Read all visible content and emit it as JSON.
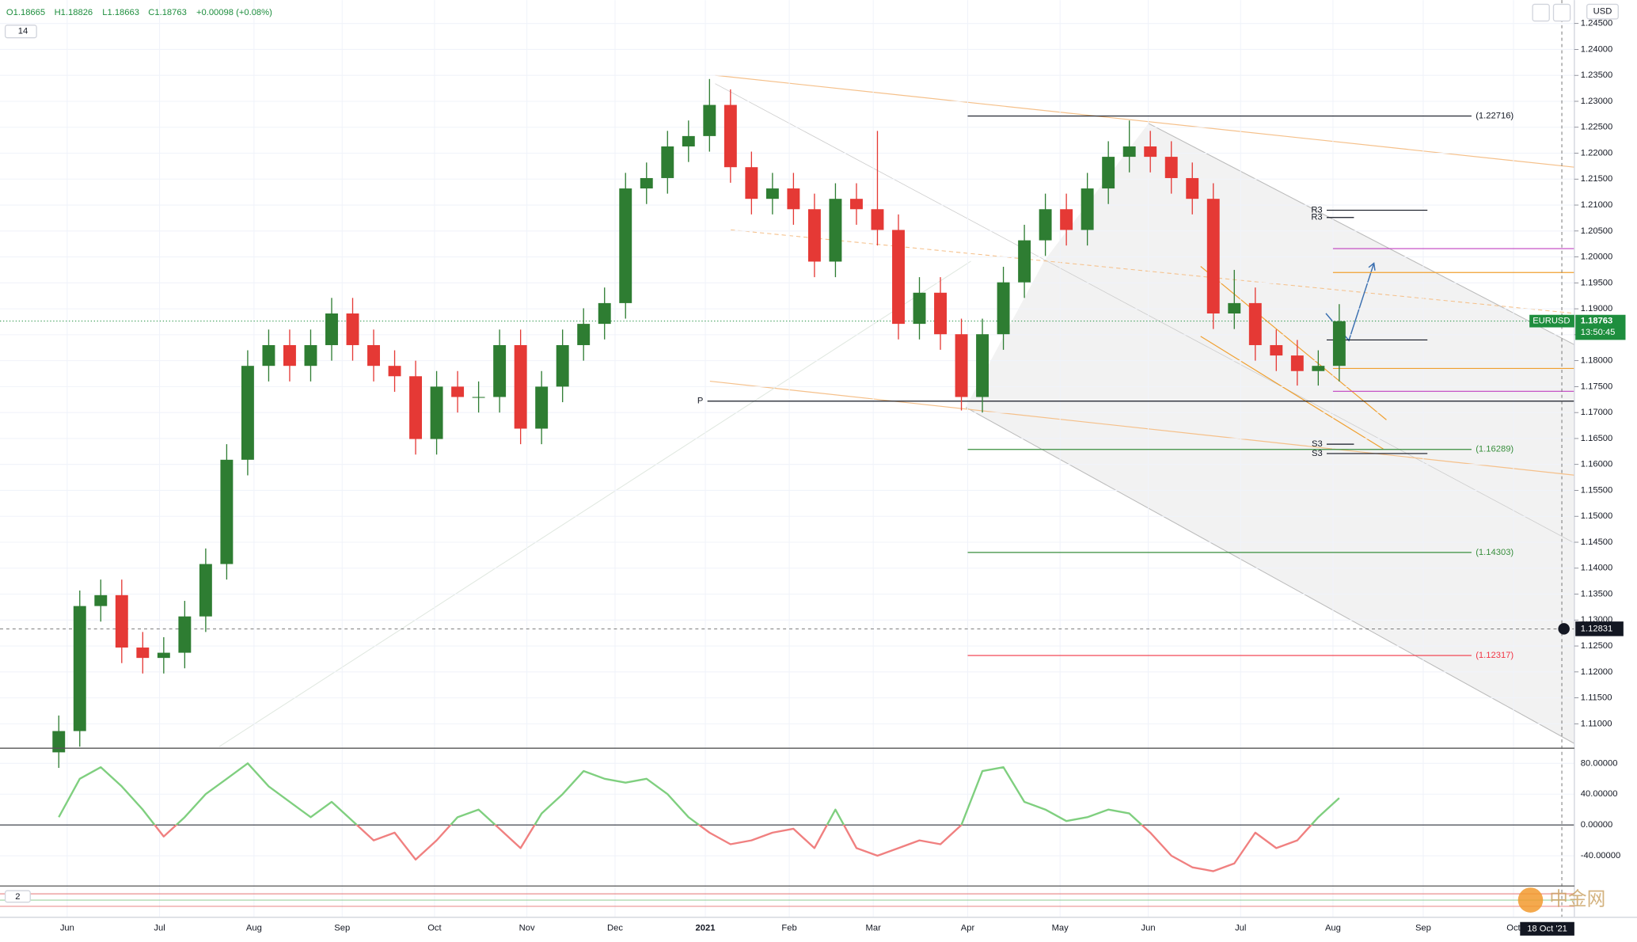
{
  "header": {
    "open": "O1.18665",
    "high": "H1.18826",
    "low": "L1.18663",
    "close": "C1.18763",
    "change": "+0.00098 (+0.08%)",
    "indicator_length": "14",
    "lower_pane_length": "2",
    "currency": "USD",
    "date_tag": "18 Oct '21",
    "watermark": "中金网"
  },
  "chart_data": [
    {
      "type": "candlestick",
      "x": [
        0,
        1,
        2,
        3,
        4,
        5,
        6,
        7,
        8,
        9,
        10,
        11,
        12,
        13,
        14,
        15,
        16,
        17,
        18,
        19,
        20,
        21,
        22,
        23,
        24,
        25,
        26,
        27,
        28,
        29,
        30,
        31,
        32,
        33,
        34,
        35,
        36,
        37,
        38,
        39,
        40,
        41,
        42,
        43,
        44,
        45,
        46,
        47,
        48,
        49,
        50,
        51,
        52,
        53,
        54,
        55,
        56,
        57,
        58,
        59,
        60,
        61
      ],
      "open": [
        1.1045,
        1.1086,
        1.1327,
        1.1348,
        1.1247,
        1.1227,
        1.1237,
        1.1307,
        1.1408,
        1.1609,
        1.179,
        1.183,
        1.179,
        1.183,
        1.1891,
        1.183,
        1.179,
        1.177,
        1.1649,
        1.175,
        1.173,
        1.173,
        1.183,
        1.1669,
        1.175,
        1.183,
        1.1871,
        1.1911,
        1.2132,
        1.2152,
        1.2213,
        1.2233,
        1.2293,
        1.2173,
        1.2112,
        1.2132,
        1.2092,
        1.1991,
        1.2112,
        1.2092,
        1.2052,
        1.1871,
        1.1931,
        1.1851,
        1.173,
        1.1851,
        1.1951,
        1.2032,
        1.2092,
        1.2052,
        1.2132,
        1.2193,
        1.2213,
        1.2193,
        1.2152,
        1.2112,
        1.1891,
        1.1911,
        1.183,
        1.181,
        1.178,
        1.179
      ],
      "high": [
        1.1116,
        1.1357,
        1.1378,
        1.1378,
        1.1277,
        1.1267,
        1.1337,
        1.1438,
        1.1639,
        1.182,
        1.186,
        1.186,
        1.186,
        1.1921,
        1.1921,
        1.186,
        1.182,
        1.18,
        1.178,
        1.178,
        1.176,
        1.186,
        1.186,
        1.178,
        1.186,
        1.1901,
        1.1941,
        1.2162,
        1.2182,
        1.2243,
        1.2263,
        1.2343,
        1.2323,
        1.2203,
        1.2162,
        1.2162,
        1.2122,
        1.2142,
        1.2142,
        1.2243,
        1.2082,
        1.1961,
        1.1961,
        1.1881,
        1.1881,
        1.1981,
        1.2062,
        1.2122,
        1.2122,
        1.2162,
        1.2223,
        1.2263,
        1.2243,
        1.2223,
        1.2182,
        1.2142,
        1.1975,
        1.1941,
        1.186,
        1.184,
        1.182,
        1.1909
      ],
      "low": [
        1.1015,
        1.1056,
        1.1297,
        1.1217,
        1.1197,
        1.1197,
        1.1207,
        1.1277,
        1.1378,
        1.1579,
        1.176,
        1.176,
        1.176,
        1.18,
        1.18,
        1.176,
        1.174,
        1.1619,
        1.1619,
        1.17,
        1.17,
        1.17,
        1.1639,
        1.1639,
        1.172,
        1.18,
        1.1841,
        1.1881,
        1.2102,
        1.2122,
        1.2183,
        1.2203,
        1.2143,
        1.2082,
        1.2082,
        1.2062,
        1.1961,
        1.1961,
        1.2062,
        1.2022,
        1.1841,
        1.1841,
        1.1821,
        1.1704,
        1.17,
        1.1821,
        1.1921,
        1.2002,
        1.2022,
        1.2022,
        1.2102,
        1.2163,
        1.2163,
        1.2122,
        1.2082,
        1.1861,
        1.1861,
        1.18,
        1.178,
        1.1752,
        1.1752,
        1.176
      ],
      "close": [
        1.1086,
        1.1327,
        1.1348,
        1.1247,
        1.1227,
        1.1237,
        1.1307,
        1.1408,
        1.1609,
        1.179,
        1.183,
        1.179,
        1.183,
        1.1891,
        1.183,
        1.179,
        1.177,
        1.1649,
        1.175,
        1.173,
        1.173,
        1.183,
        1.1669,
        1.175,
        1.183,
        1.1871,
        1.1911,
        1.2132,
        1.2152,
        1.2213,
        1.2233,
        1.2293,
        1.2173,
        1.2112,
        1.2132,
        1.2092,
        1.1991,
        1.2112,
        1.2092,
        1.2052,
        1.1871,
        1.1931,
        1.1851,
        1.173,
        1.1851,
        1.1951,
        1.2032,
        1.2092,
        1.2052,
        1.2132,
        1.2193,
        1.2213,
        1.2193,
        1.2152,
        1.2112,
        1.1891,
        1.1911,
        1.183,
        1.181,
        1.178,
        1.179,
        1.1876
      ],
      "up_color": "#2e7d32",
      "down_color": "#e53935",
      "xlim": [
        -2.8,
        72.2
      ],
      "xticks": [
        {
          "value": 0.4,
          "label": "Jun"
        },
        {
          "value": 4.8,
          "label": "Jul"
        },
        {
          "value": 9.3,
          "label": "Aug"
        },
        {
          "value": 13.5,
          "label": "Sep"
        },
        {
          "value": 17.9,
          "label": "Oct"
        },
        {
          "value": 22.3,
          "label": "Nov"
        },
        {
          "value": 26.5,
          "label": "Dec"
        },
        {
          "value": 30.8,
          "label": "2021"
        },
        {
          "value": 34.8,
          "label": "Feb"
        },
        {
          "value": 38.8,
          "label": "Mar"
        },
        {
          "value": 43.3,
          "label": "Apr"
        },
        {
          "value": 47.7,
          "label": "May"
        },
        {
          "value": 51.9,
          "label": "Jun"
        },
        {
          "value": 56.3,
          "label": "Jul"
        },
        {
          "value": 60.7,
          "label": "Aug"
        },
        {
          "value": 65,
          "label": "Sep"
        },
        {
          "value": 69.3,
          "label": "Oct"
        }
      ],
      "ylim": [
        1.1054,
        1.2495
      ],
      "yticks": [
        {
          "value": 1.11,
          "label": "1.11000"
        },
        {
          "value": 1.115,
          "label": "1.11500"
        },
        {
          "value": 1.12,
          "label": "1.12000"
        },
        {
          "value": 1.125,
          "label": "1.12500"
        },
        {
          "value": 1.13,
          "label": "1.13000"
        },
        {
          "value": 1.135,
          "label": "1.13500"
        },
        {
          "value": 1.14,
          "label": "1.14000"
        },
        {
          "value": 1.145,
          "label": "1.14500"
        },
        {
          "value": 1.15,
          "label": "1.15000"
        },
        {
          "value": 1.155,
          "label": "1.15500"
        },
        {
          "value": 1.16,
          "label": "1.16000"
        },
        {
          "value": 1.165,
          "label": "1.16500"
        },
        {
          "value": 1.17,
          "label": "1.17000"
        },
        {
          "value": 1.175,
          "label": "1.17500"
        },
        {
          "value": 1.18,
          "label": "1.18000"
        },
        {
          "value": 1.185,
          "label": "1.18500"
        },
        {
          "value": 1.19,
          "label": "1.19000"
        },
        {
          "value": 1.195,
          "label": "1.19500"
        },
        {
          "value": 1.2,
          "label": "1.20000"
        },
        {
          "value": 1.205,
          "label": "1.20500"
        },
        {
          "value": 1.21,
          "label": "1.21000"
        },
        {
          "value": 1.215,
          "label": "1.21500"
        },
        {
          "value": 1.22,
          "label": "1.22000"
        },
        {
          "value": 1.225,
          "label": "1.22500"
        },
        {
          "value": 1.23,
          "label": "1.23000"
        },
        {
          "value": 1.235,
          "label": "1.23500"
        },
        {
          "value": 1.24,
          "label": "1.24000"
        },
        {
          "value": 1.245,
          "label": "1.24500"
        }
      ],
      "grid": true,
      "price_levels": [
        {
          "value": 1.22716,
          "label": "(1.22716)",
          "color": "#131722",
          "xrange": [
            43.3,
            67.3
          ]
        },
        {
          "value": 1.16289,
          "label": "(1.16289)",
          "color": "#388e3c",
          "xrange": [
            43.3,
            67.3
          ]
        },
        {
          "value": 1.14303,
          "label": "(1.14303)",
          "color": "#388e3c",
          "xrange": [
            43.3,
            67.3
          ]
        },
        {
          "value": 1.12317,
          "label": "(1.12317)",
          "color": "#f23645",
          "xrange": [
            43.3,
            67.3
          ]
        }
      ],
      "pivot_levels": [
        {
          "value": 1.209,
          "label": "R3",
          "color": "#131722",
          "xrange": [
            60.4,
            65.2
          ]
        },
        {
          "value": 1.2076,
          "label": "R3",
          "color": "#131722",
          "xrange": [
            60.4,
            61.7
          ]
        },
        {
          "value": 1.1722,
          "label": "P",
          "color": "#131722",
          "xrange": [
            30.9,
            72.2
          ]
        },
        {
          "value": 1.1639,
          "label": "S3",
          "color": "#131722",
          "xrange": [
            60.4,
            61.7
          ]
        },
        {
          "value": 1.1621,
          "label": "S3",
          "color": "#131722",
          "xrange": [
            60.4,
            65.2
          ]
        }
      ],
      "lines": [
        {
          "value": 1.2016,
          "color": "#c040c0",
          "xrange": [
            60.7,
            72.2
          ]
        },
        {
          "value": 1.197,
          "color": "#f0a030",
          "xrange": [
            60.7,
            72.2
          ]
        },
        {
          "value": 1.184,
          "color": "#131722",
          "xrange": [
            60.4,
            65.2
          ]
        },
        {
          "value": 1.1785,
          "color": "#f0a030",
          "xrange": [
            60.7,
            72.2
          ]
        },
        {
          "value": 1.1741,
          "color": "#c040c0",
          "xrange": [
            60.7,
            72.2
          ]
        }
      ],
      "last_price": {
        "symbol": "EURUSD",
        "price": 1.18763,
        "countdown": "13:50:45",
        "color": "#1e8e3e"
      },
      "crosshair": {
        "price": 1.12831
      }
    },
    {
      "type": "line",
      "x": [
        0,
        1,
        2,
        3,
        4,
        5,
        6,
        7,
        8,
        9,
        10,
        11,
        12,
        13,
        14,
        15,
        16,
        17,
        18,
        19,
        20,
        21,
        22,
        23,
        24,
        25,
        26,
        27,
        28,
        29,
        30,
        31,
        32,
        33,
        34,
        35,
        36,
        37,
        38,
        39,
        40,
        41,
        42,
        43,
        44,
        45,
        46,
        47,
        48,
        49,
        50,
        51,
        52,
        53,
        54,
        55,
        56,
        57,
        58,
        59,
        60,
        61
      ],
      "values": [
        10,
        60,
        75,
        50,
        20,
        -15,
        10,
        40,
        60,
        80,
        50,
        30,
        10,
        30,
        5,
        -20,
        -10,
        -45,
        -20,
        10,
        20,
        -5,
        -30,
        15,
        40,
        70,
        60,
        55,
        60,
        40,
        10,
        -10,
        -25,
        -20,
        -10,
        -5,
        -30,
        20,
        -30,
        -40,
        -30,
        -20,
        -25,
        0,
        70,
        75,
        30,
        20,
        5,
        10,
        20,
        15,
        -10,
        -40,
        -55,
        -60,
        -50,
        -10,
        -30,
        -20,
        10,
        35
      ],
      "color_above": "#7fcf7f",
      "color_below": "#f08080",
      "xlim": [
        -2.8,
        72.2
      ],
      "ylim": [
        -78.6,
        99
      ],
      "yticks": [
        {
          "value": 80,
          "label": "80.00000"
        },
        {
          "value": 40,
          "label": "40.00000"
        },
        {
          "value": 0,
          "label": "0.00000"
        },
        {
          "value": -40,
          "label": "-40.00000"
        }
      ],
      "grid": true
    }
  ]
}
